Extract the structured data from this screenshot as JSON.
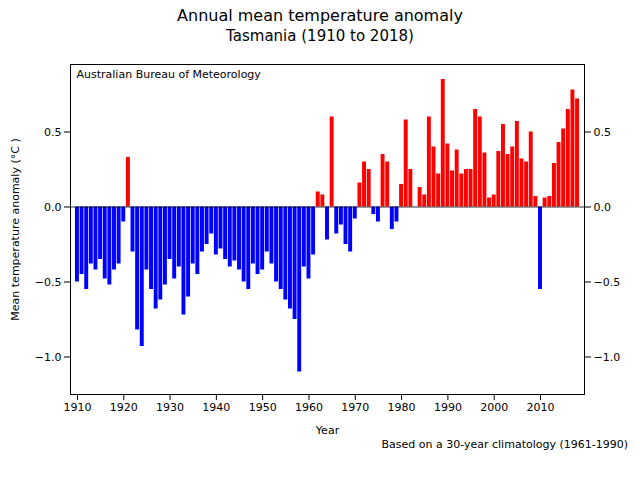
{
  "chart_data": {
    "type": "bar",
    "title": "Annual mean temperature anomaly",
    "subtitle": "Tasmania (1910 to 2018)",
    "xlabel": "Year",
    "ylabel": "Mean temperature anomaly (°C )",
    "annotations": [
      "Australian Bureau of Meteorology",
      "Based on a 30-year climatology (1961-1990)"
    ],
    "x": [
      1910,
      1911,
      1912,
      1913,
      1914,
      1915,
      1916,
      1917,
      1918,
      1919,
      1920,
      1921,
      1922,
      1923,
      1924,
      1925,
      1926,
      1927,
      1928,
      1929,
      1930,
      1931,
      1932,
      1933,
      1934,
      1935,
      1936,
      1937,
      1938,
      1939,
      1940,
      1941,
      1942,
      1943,
      1944,
      1945,
      1946,
      1947,
      1948,
      1949,
      1950,
      1951,
      1952,
      1953,
      1954,
      1955,
      1956,
      1957,
      1958,
      1959,
      1960,
      1961,
      1962,
      1963,
      1964,
      1965,
      1966,
      1967,
      1968,
      1969,
      1970,
      1971,
      1972,
      1973,
      1974,
      1975,
      1976,
      1977,
      1978,
      1979,
      1980,
      1981,
      1982,
      1983,
      1984,
      1985,
      1986,
      1987,
      1988,
      1989,
      1990,
      1991,
      1992,
      1993,
      1994,
      1995,
      1996,
      1997,
      1998,
      1999,
      2000,
      2001,
      2002,
      2003,
      2004,
      2005,
      2006,
      2007,
      2008,
      2009,
      2010,
      2011,
      2012,
      2013,
      2014,
      2015,
      2016,
      2017,
      2018
    ],
    "values": [
      -0.5,
      -0.45,
      -0.55,
      -0.38,
      -0.42,
      -0.35,
      -0.48,
      -0.52,
      -0.42,
      -0.38,
      -0.1,
      0.33,
      -0.3,
      -0.82,
      -0.93,
      -0.42,
      -0.55,
      -0.68,
      -0.62,
      -0.52,
      -0.35,
      -0.48,
      -0.4,
      -0.72,
      -0.6,
      -0.38,
      -0.45,
      -0.3,
      -0.25,
      -0.18,
      -0.32,
      -0.28,
      -0.35,
      -0.4,
      -0.36,
      -0.42,
      -0.5,
      -0.55,
      -0.38,
      -0.45,
      -0.42,
      -0.3,
      -0.38,
      -0.5,
      -0.55,
      -0.62,
      -0.68,
      -0.75,
      -1.1,
      -0.4,
      -0.48,
      -0.32,
      0.1,
      0.08,
      -0.22,
      0.6,
      -0.18,
      -0.12,
      -0.25,
      -0.3,
      -0.08,
      0.16,
      0.3,
      0.25,
      -0.05,
      -0.1,
      0.35,
      0.3,
      -0.15,
      -0.1,
      0.15,
      0.58,
      0.25,
      0.0,
      0.13,
      0.08,
      0.6,
      0.4,
      0.22,
      0.85,
      0.42,
      0.24,
      0.38,
      0.22,
      0.25,
      0.25,
      0.65,
      0.6,
      0.36,
      0.06,
      0.08,
      0.37,
      0.55,
      0.35,
      0.4,
      0.57,
      0.32,
      0.3,
      0.5,
      0.07,
      -0.55,
      0.06,
      0.07,
      0.29,
      0.43,
      0.52,
      0.65,
      0.78,
      0.72
    ],
    "colors": [
      "#0000FF",
      "#0000FF",
      "#0000FF",
      "#0000FF",
      "#0000FF",
      "#0000FF",
      "#0000FF",
      "#0000FF",
      "#0000FF",
      "#0000FF",
      "#0000FF",
      "#FF0000",
      "#0000FF",
      "#0000FF",
      "#0000FF",
      "#0000FF",
      "#0000FF",
      "#0000FF",
      "#0000FF",
      "#0000FF",
      "#0000FF",
      "#0000FF",
      "#0000FF",
      "#0000FF",
      "#0000FF",
      "#0000FF",
      "#0000FF",
      "#0000FF",
      "#0000FF",
      "#0000FF",
      "#0000FF",
      "#0000FF",
      "#0000FF",
      "#0000FF",
      "#0000FF",
      "#0000FF",
      "#0000FF",
      "#0000FF",
      "#0000FF",
      "#0000FF",
      "#0000FF",
      "#0000FF",
      "#0000FF",
      "#0000FF",
      "#0000FF",
      "#0000FF",
      "#0000FF",
      "#0000FF",
      "#0000FF",
      "#0000FF",
      "#0000FF",
      "#0000FF",
      "#FF0000",
      "#FF0000",
      "#0000FF",
      "#FF0000",
      "#0000FF",
      "#0000FF",
      "#0000FF",
      "#0000FF",
      "#0000FF",
      "#FF0000",
      "#FF0000",
      "#FF0000",
      "#0000FF",
      "#0000FF",
      "#FF0000",
      "#FF0000",
      "#0000FF",
      "#0000FF",
      "#FF0000",
      "#FF0000",
      "#FF0000",
      "#FF0000",
      "#FF0000",
      "#FF0000",
      "#FF0000",
      "#FF0000",
      "#FF0000",
      "#FF0000",
      "#FF0000",
      "#FF0000",
      "#FF0000",
      "#FF0000",
      "#FF0000",
      "#FF0000",
      "#FF0000",
      "#FF0000",
      "#FF0000",
      "#FF0000",
      "#FF0000",
      "#FF0000",
      "#FF0000",
      "#FF0000",
      "#FF0000",
      "#FF0000",
      "#FF0000",
      "#FF0000",
      "#FF0000",
      "#FF0000",
      "#0000FF",
      "#FF0000",
      "#FF0000",
      "#FF0000",
      "#FF0000",
      "#FF0000",
      "#FF0000",
      "#FF0000",
      "#FF0000"
    ],
    "xlim": [
      1908.5,
      2019.5
    ],
    "xticks": [
      1910,
      1920,
      1930,
      1940,
      1950,
      1960,
      1970,
      1980,
      1990,
      2000,
      2010
    ],
    "ylim": [
      -1.25,
      0.95
    ],
    "yticks": [
      {
        "value": -1.0,
        "label": "−1.0"
      },
      {
        "value": -0.5,
        "label": "−0.5"
      },
      {
        "value": 0.0,
        "label": "0.0"
      },
      0.5
    ],
    "y2lim": [
      -1.25,
      0.95
    ],
    "y2ticks": [
      {
        "value": -1.0,
        "label": "−1.0"
      },
      {
        "value": -0.5,
        "label": "−0.5"
      },
      {
        "value": 0.0,
        "label": "0.0"
      },
      0.5
    ],
    "grid": false
  }
}
